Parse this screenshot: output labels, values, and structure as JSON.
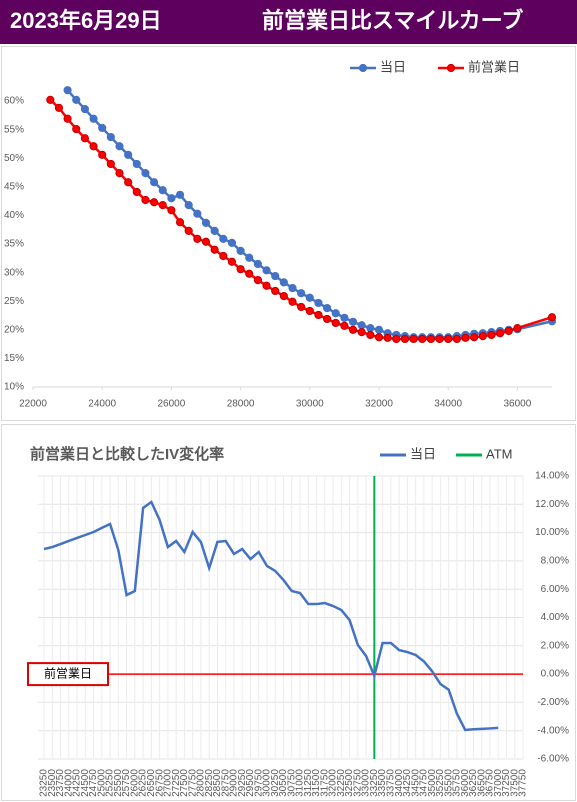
{
  "header": {
    "date": "2023年6月29日",
    "title": "前営業日比スマイルカーブ"
  },
  "chart_data": [
    {
      "type": "line",
      "markers": true,
      "xlim": [
        22000,
        37000
      ],
      "xticks": [
        22000,
        24000,
        26000,
        28000,
        30000,
        32000,
        34000,
        36000
      ],
      "ylim": [
        10,
        62
      ],
      "yticks": [
        {
          "value": 10,
          "label": "10%"
        },
        {
          "value": 15,
          "label": "15%"
        },
        {
          "value": 20,
          "label": "20%"
        },
        {
          "value": 25,
          "label": "25%"
        },
        {
          "value": 30,
          "label": "30%"
        },
        {
          "value": 35,
          "label": "35%"
        },
        {
          "value": 40,
          "label": "40%"
        },
        {
          "value": 45,
          "label": "45%"
        },
        {
          "value": 50,
          "label": "50%"
        },
        {
          "value": 55,
          "label": "55%"
        },
        {
          "value": 60,
          "label": "60%"
        }
      ],
      "legend": "top-right",
      "series": [
        {
          "name": "当日",
          "color": "#4472c4",
          "x": [
            23000,
            23250,
            23500,
            23750,
            24000,
            24250,
            24500,
            24750,
            25000,
            25250,
            25500,
            25750,
            26000,
            26250,
            26500,
            26750,
            27000,
            27250,
            27500,
            27750,
            28000,
            28250,
            28500,
            28750,
            29000,
            29250,
            29500,
            29750,
            30000,
            30250,
            30500,
            30750,
            31000,
            31250,
            31500,
            31750,
            32000,
            32250,
            32500,
            32750,
            33000,
            33250,
            33500,
            33750,
            34000,
            34250,
            34500,
            34750,
            35000,
            35250,
            35500,
            35750,
            36000,
            37000
          ],
          "values": [
            61.9,
            60.2,
            58.6,
            56.9,
            55.3,
            53.7,
            52.1,
            50.6,
            49.0,
            47.4,
            45.8,
            44.4,
            43.0,
            43.6,
            41.8,
            40.3,
            38.7,
            37.3,
            35.9,
            35.2,
            33.8,
            32.6,
            31.5,
            30.4,
            29.4,
            28.3,
            27.3,
            26.4,
            25.6,
            24.7,
            23.8,
            22.9,
            22.1,
            21.4,
            20.8,
            20.3,
            20.0,
            19.4,
            19.1,
            18.9,
            18.7,
            18.7,
            18.7,
            18.7,
            18.7,
            18.9,
            19.1,
            19.3,
            19.4,
            19.6,
            19.8,
            20.0,
            20.1,
            21.5
          ]
        },
        {
          "name": "前営業日",
          "color": "#ff0000",
          "x": [
            22500,
            22750,
            23000,
            23250,
            23500,
            23750,
            24000,
            24250,
            24500,
            24750,
            25000,
            25250,
            25500,
            25750,
            26000,
            26250,
            26500,
            26750,
            27000,
            27250,
            27500,
            27750,
            28000,
            28250,
            28500,
            28750,
            29000,
            29250,
            29500,
            29750,
            30000,
            30250,
            30500,
            30750,
            31000,
            31250,
            31500,
            31750,
            32000,
            32250,
            32500,
            32750,
            33000,
            33250,
            33500,
            33750,
            34000,
            34250,
            34500,
            34750,
            35000,
            35250,
            35500,
            35750,
            36000,
            37000
          ],
          "values": [
            60.2,
            58.8,
            56.9,
            55.1,
            53.5,
            52.1,
            50.6,
            49.0,
            47.4,
            45.8,
            44.1,
            42.7,
            42.3,
            41.8,
            40.9,
            38.8,
            37.3,
            35.9,
            35.4,
            34.0,
            32.9,
            31.9,
            30.6,
            29.8,
            28.7,
            27.7,
            26.8,
            25.9,
            24.9,
            24.0,
            23.3,
            22.6,
            21.9,
            21.2,
            20.7,
            20.0,
            19.6,
            19.1,
            18.7,
            18.6,
            18.4,
            18.4,
            18.4,
            18.4,
            18.4,
            18.4,
            18.4,
            18.4,
            18.6,
            18.7,
            18.9,
            19.1,
            19.4,
            19.8,
            20.3,
            22.2
          ]
        }
      ]
    },
    {
      "type": "line",
      "title": "前営業日と比較したIV変化率",
      "categories": [
        "23250",
        "23500",
        "23750",
        "24000",
        "24250",
        "24500",
        "24750",
        "25000",
        "25250",
        "25500",
        "25750",
        "26000",
        "26250",
        "26500",
        "26750",
        "27000",
        "27250",
        "27500",
        "27750",
        "28000",
        "28250",
        "28500",
        "28750",
        "29000",
        "29250",
        "29500",
        "29750",
        "30000",
        "30250",
        "30500",
        "30750",
        "31000",
        "31250",
        "31500",
        "31750",
        "32000",
        "32250",
        "32500",
        "32750",
        "33000",
        "33250",
        "33500",
        "33750",
        "34000",
        "34250",
        "34500",
        "34750",
        "35000",
        "35250",
        "35500",
        "35750",
        "36000",
        "36250",
        "36500",
        "36750",
        "37000",
        "37250",
        "37500",
        "37750"
      ],
      "ylim": [
        -6,
        14
      ],
      "yticks": [
        {
          "value": -6,
          "label": "-6.00%"
        },
        {
          "value": -4,
          "label": "-4.00%"
        },
        {
          "value": -2,
          "label": "-2.00%"
        },
        {
          "value": 0,
          "label": "0.00%"
        },
        {
          "value": 2,
          "label": "2.00%"
        },
        {
          "value": 4,
          "label": "4.00%"
        },
        {
          "value": 6,
          "label": "6.00%"
        },
        {
          "value": 8,
          "label": "8.00%"
        },
        {
          "value": 10,
          "label": "10.00%"
        },
        {
          "value": 12,
          "label": "12.00%"
        },
        {
          "value": 14,
          "label": "14.00%"
        }
      ],
      "y_axis_side": "right",
      "grid": true,
      "legend": "top-right",
      "series": [
        {
          "name": "当日",
          "color": "#4472c4",
          "values": [
            8.84,
            8.98,
            9.19,
            9.41,
            9.62,
            9.83,
            10.04,
            10.33,
            10.61,
            8.77,
            5.59,
            5.87,
            11.74,
            12.16,
            10.89,
            8.98,
            9.41,
            8.63,
            10.04,
            9.34,
            7.5,
            9.34,
            9.41,
            8.49,
            8.84,
            8.13,
            8.63,
            7.64,
            7.29,
            6.65,
            5.87,
            5.73,
            4.95,
            4.95,
            5.02,
            4.81,
            4.53,
            3.82,
            2.06,
            1.28,
            -0.13,
            2.2,
            2.2,
            1.7,
            1.56,
            1.35,
            0.9,
            0.2,
            -0.7,
            -1.1,
            -2.8,
            -3.95,
            -3.9,
            -3.87,
            -3.84,
            -3.8,
            null,
            null,
            null
          ]
        }
      ],
      "vline": {
        "name": "ATM",
        "color": "#00b050",
        "x": 33250
      },
      "hline": {
        "label": "前営業日",
        "color": "#ff0000",
        "y": 0
      }
    }
  ]
}
